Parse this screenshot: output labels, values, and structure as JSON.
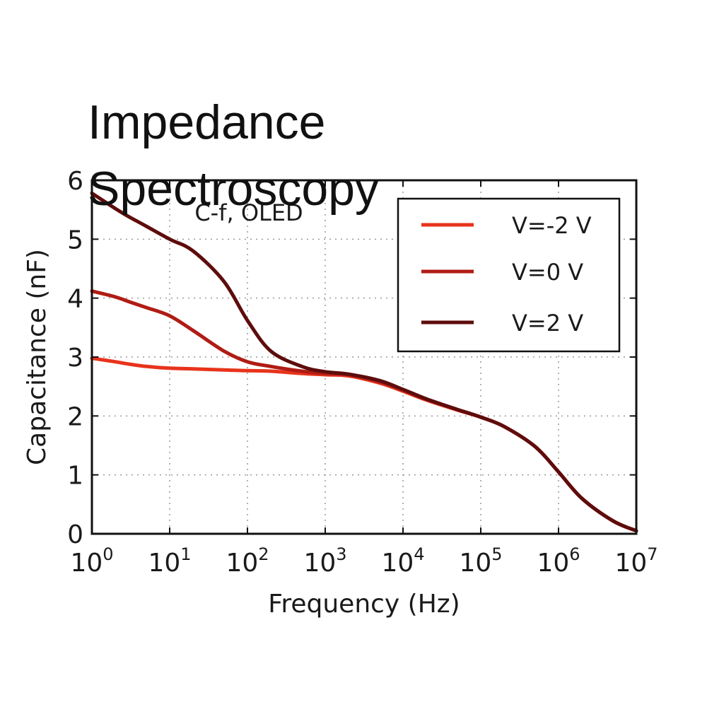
{
  "overlay_title": {
    "line1": "Impedance",
    "line2": "Spectroscopy"
  },
  "chart_data": {
    "type": "line",
    "title": "C-f, OLED",
    "xlabel": "Frequency (Hz)",
    "ylabel": "Capacitance (nF)",
    "xscale": "log",
    "xlim": [
      1,
      10000000
    ],
    "ylim": [
      0,
      6
    ],
    "grid": true,
    "legend": "upper-right",
    "x_ticks": [
      {
        "base": "10",
        "exp": "0"
      },
      {
        "base": "10",
        "exp": "1"
      },
      {
        "base": "10",
        "exp": "2"
      },
      {
        "base": "10",
        "exp": "3"
      },
      {
        "base": "10",
        "exp": "4"
      },
      {
        "base": "10",
        "exp": "5"
      },
      {
        "base": "10",
        "exp": "6"
      },
      {
        "base": "10",
        "exp": "7"
      }
    ],
    "y_ticks": [
      "0",
      "1",
      "2",
      "3",
      "4",
      "5",
      "6"
    ],
    "series": [
      {
        "name": "V=-2 V",
        "color": "#e8331c",
        "x": [
          1,
          2,
          3,
          5,
          10,
          20,
          50,
          100,
          200,
          500,
          1000,
          2000,
          5000,
          10000,
          20000,
          50000,
          100000,
          200000,
          500000,
          1000000,
          2000000,
          5000000,
          10000000
        ],
        "y": [
          2.98,
          2.92,
          2.88,
          2.84,
          2.81,
          2.8,
          2.78,
          2.77,
          2.76,
          2.72,
          2.7,
          2.68,
          2.56,
          2.42,
          2.27,
          2.1,
          1.98,
          1.82,
          1.48,
          1.05,
          0.6,
          0.22,
          0.05
        ]
      },
      {
        "name": "V=0 V",
        "color": "#b01c14",
        "x": [
          1,
          2,
          3,
          5,
          10,
          20,
          50,
          100,
          200,
          500,
          1000,
          2000,
          5000,
          10000,
          20000,
          50000,
          100000,
          200000,
          500000,
          1000000,
          2000000,
          5000000,
          10000000
        ],
        "y": [
          4.12,
          4.02,
          3.94,
          3.84,
          3.7,
          3.45,
          3.1,
          2.92,
          2.84,
          2.76,
          2.72,
          2.7,
          2.58,
          2.44,
          2.28,
          2.11,
          1.98,
          1.82,
          1.48,
          1.05,
          0.6,
          0.22,
          0.05
        ]
      },
      {
        "name": "V=2 V",
        "color": "#5e0c0c",
        "x": [
          1,
          2,
          3,
          5,
          10,
          20,
          50,
          100,
          200,
          500,
          1000,
          2000,
          5000,
          10000,
          20000,
          50000,
          100000,
          200000,
          500000,
          1000000,
          2000000,
          5000000,
          10000000
        ],
        "y": [
          5.78,
          5.52,
          5.38,
          5.22,
          5.0,
          4.8,
          4.28,
          3.62,
          3.1,
          2.84,
          2.75,
          2.71,
          2.6,
          2.45,
          2.29,
          2.11,
          1.98,
          1.82,
          1.48,
          1.05,
          0.6,
          0.22,
          0.05
        ]
      }
    ]
  }
}
